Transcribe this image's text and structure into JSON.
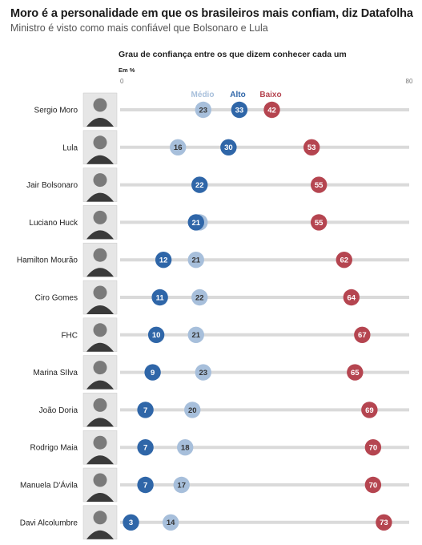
{
  "header": {
    "title": "Moro é a personalidade em que os brasileiros mais confiam, diz Datafolha",
    "subtitle": "Ministro é visto como mais confiável que Bolsonaro e Lula"
  },
  "chart_data": {
    "type": "scatter",
    "title": "Grau de confiança entre os que dizem conhecer cada um",
    "unit_label": "Em %",
    "xlim": [
      0,
      80
    ],
    "x_ticks": [
      0,
      80
    ],
    "grid": false,
    "legend_position": "top",
    "categories": [
      "Sergio Moro",
      "Lula",
      "Jair Bolsonaro",
      "Luciano Huck",
      "Hamilton Mourão",
      "Ciro Gomes",
      "FHC",
      "Marina SIlva",
      "João Doria",
      "Rodrigo Maia",
      "Manuela D'Ávila",
      "Davi Alcolumbre"
    ],
    "series": [
      {
        "name": "Médio",
        "color": "#a7bfdb",
        "label_color": "#333333",
        "values": [
          23,
          16,
          22,
          22,
          21,
          22,
          21,
          23,
          20,
          18,
          17,
          14
        ]
      },
      {
        "name": "Alto",
        "color": "#2f66a8",
        "label_color": "#ffffff",
        "values": [
          33,
          30,
          22,
          21,
          12,
          11,
          10,
          9,
          7,
          7,
          7,
          3
        ]
      },
      {
        "name": "Baixo",
        "color": "#b54550",
        "label_color": "#ffffff",
        "values": [
          42,
          53,
          55,
          55,
          62,
          64,
          67,
          65,
          69,
          70,
          70,
          73
        ]
      }
    ],
    "legend_colors": {
      "Médio": "#a7bfdb",
      "Alto": "#2f66a8",
      "Baixo": "#b54550"
    },
    "row_icon": "portrait-photo-icon"
  }
}
